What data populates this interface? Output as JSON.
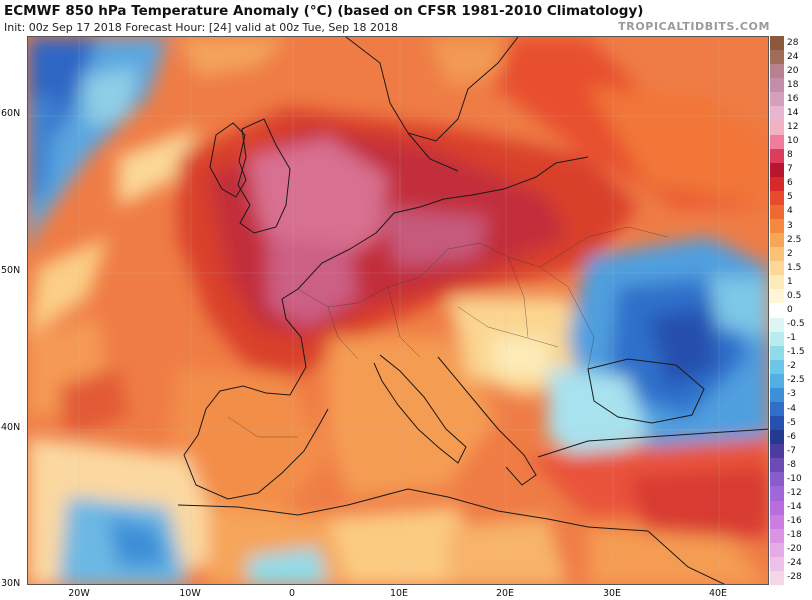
{
  "header": {
    "title": "ECMWF 850 hPa Temperature Anomaly (°C) (based on CFSR 1981-2010 Climatology)",
    "subtitle": "Init: 00z Sep 17 2018   Forecast Hour: [24]   valid at 00z Tue, Sep 18 2018",
    "brand": "TROPICALTIDBITS.COM"
  },
  "map": {
    "region": "Europe",
    "lat_labels": [
      "60N",
      "50N",
      "40N",
      "30N"
    ],
    "lon_labels": [
      "20W",
      "10W",
      "0",
      "10E",
      "20E",
      "30E",
      "40E"
    ]
  },
  "colorbar": {
    "labels": [
      "28",
      "24",
      "20",
      "18",
      "16",
      "14",
      "12",
      "10",
      "8",
      "7",
      "6",
      "5",
      "4",
      "3",
      "2.5",
      "2",
      "1.5",
      "1",
      "0.5",
      "0",
      "-0.5",
      "-1",
      "-1.5",
      "-2",
      "-2.5",
      "-3",
      "-4",
      "-5",
      "-6",
      "-7",
      "-8",
      "-10",
      "-12",
      "-14",
      "-16",
      "-18",
      "-20",
      "-24",
      "-28"
    ],
    "colors": [
      "#8b5a3c",
      "#a06d58",
      "#b88190",
      "#c58ea8",
      "#d4a0bd",
      "#e7b6d0",
      "#f1b3c3",
      "#f07b9a",
      "#dc3d5c",
      "#b8152f",
      "#d62a2a",
      "#e84a2e",
      "#ef6a32",
      "#f58940",
      "#f7a557",
      "#fac277",
      "#fbd897",
      "#fdebb7",
      "#fff6d8",
      "#ffffff",
      "#dff5f5",
      "#b9ecef",
      "#8fdbe8",
      "#6cc6e6",
      "#52aee3",
      "#3d8fd8",
      "#2f6fca",
      "#2550ad",
      "#233a8e",
      "#4d3c9e",
      "#6c4bb5",
      "#8a5ccb",
      "#a166d8",
      "#b86fdd",
      "#cc7ee0",
      "#d994e3",
      "#e4abe6",
      "#edc1e8",
      "#f4d6e6"
    ]
  }
}
